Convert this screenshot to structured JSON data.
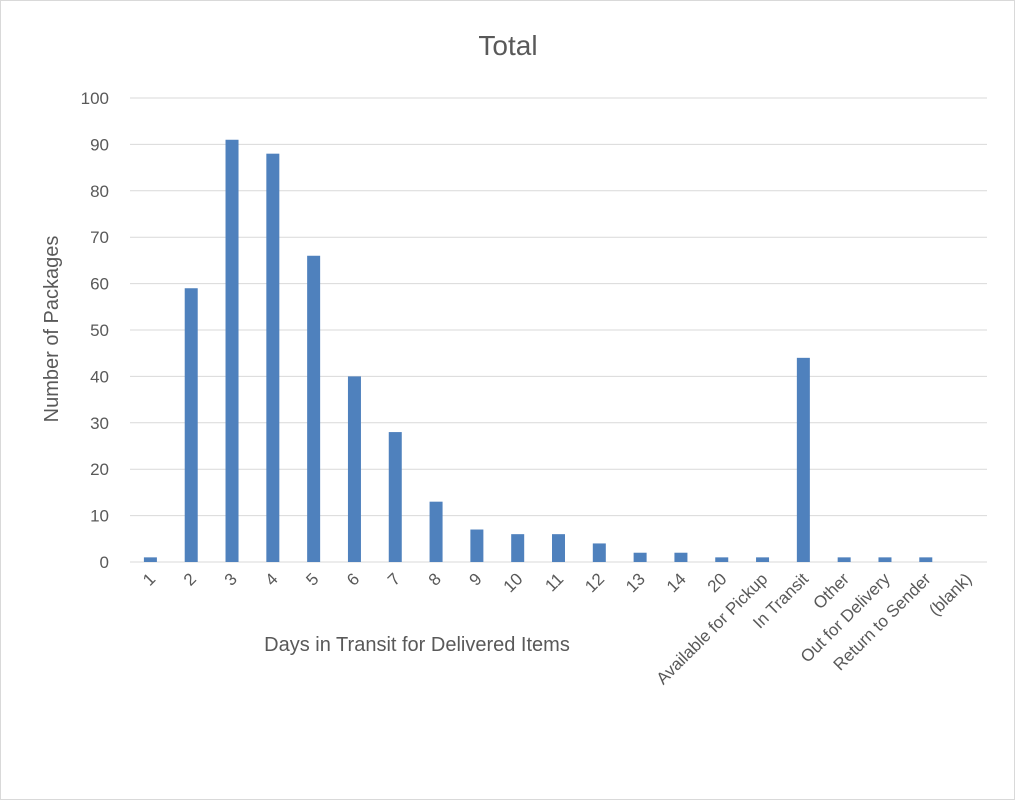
{
  "chart_data": {
    "type": "bar",
    "title": "Total",
    "xlabel": "Days in Transit for Delivered Items",
    "ylabel": "Number of Packages",
    "categories": [
      "1",
      "2",
      "3",
      "4",
      "5",
      "6",
      "7",
      "8",
      "9",
      "10",
      "11",
      "12",
      "13",
      "14",
      "20",
      "Available for Pickup",
      "In Transit",
      "Other",
      "Out for Delivery",
      "Return to Sender",
      "(blank)"
    ],
    "values": [
      1,
      59,
      91,
      88,
      66,
      40,
      28,
      13,
      7,
      6,
      6,
      4,
      2,
      2,
      1,
      1,
      44,
      1,
      1,
      1,
      0
    ],
    "ylim": [
      0,
      100
    ],
    "yticks": [
      0,
      10,
      20,
      30,
      40,
      50,
      60,
      70,
      80,
      90,
      100
    ],
    "grid": true,
    "legend": "none",
    "bar_color": "#4f81bd"
  }
}
